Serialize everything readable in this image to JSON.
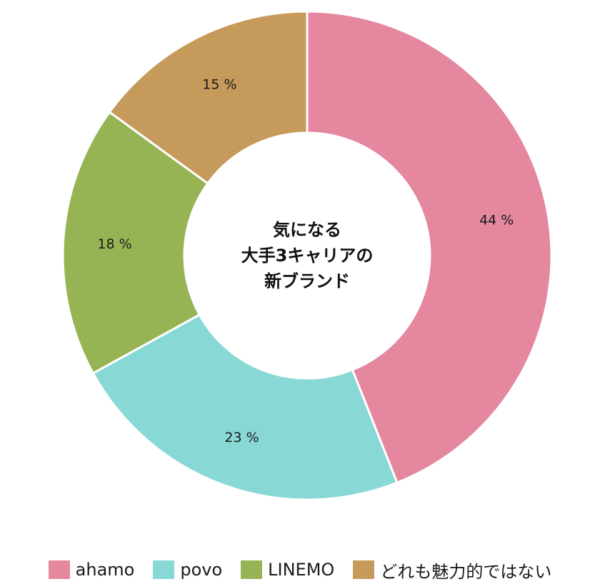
{
  "chart_data": {
    "type": "pie",
    "variant": "donut",
    "center_title_lines": [
      "気になる",
      "大手3キャリアの",
      "新ブランド"
    ],
    "categories": [
      "ahamo",
      "povo",
      "LINEMO",
      "どれも魅力的ではない"
    ],
    "values": [
      44,
      23,
      18,
      15
    ],
    "value_labels": [
      "44 %",
      "23 %",
      "18 %",
      "15 %"
    ],
    "colors": [
      "#e4879f",
      "#88d8d5",
      "#97b455",
      "#c69a5b"
    ],
    "legend_position": "bottom"
  }
}
